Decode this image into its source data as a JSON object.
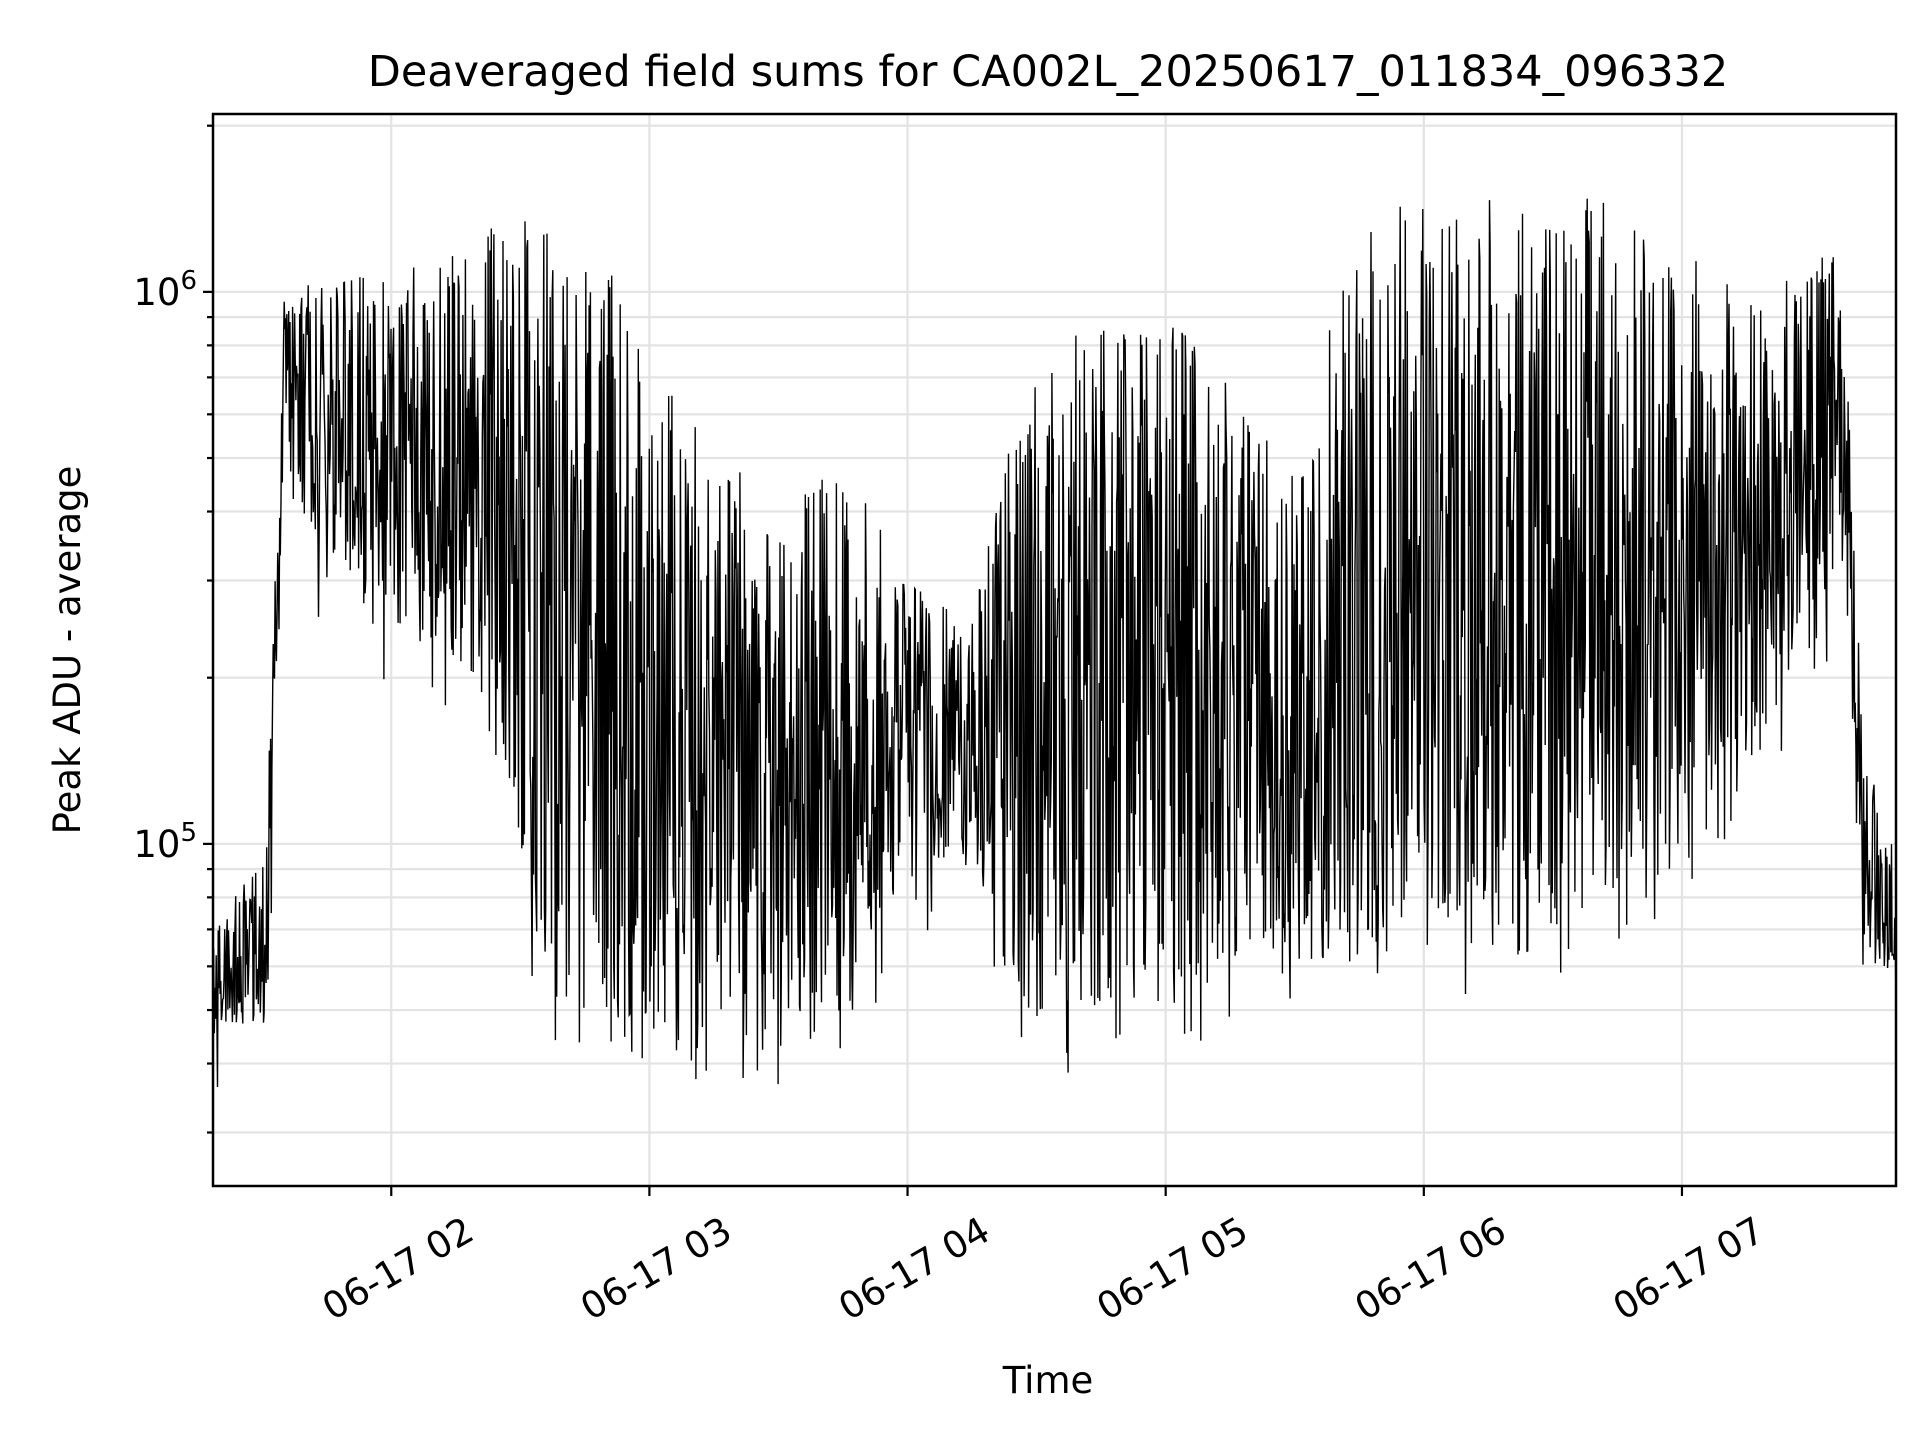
{
  "chart_data": {
    "type": "line",
    "title": "Deaveraged field sums for CA002L_20250617_011834_096332",
    "xlabel": "Time",
    "ylabel": "Peak ADU - average",
    "yscale": "log",
    "xlim": [
      "2025-06-17 01:18:34",
      "2025-06-17 07:49:45"
    ],
    "ylim": [
      24000,
      2100000
    ],
    "x_tick_labels": [
      "06-17 02",
      "06-17 03",
      "06-17 04",
      "06-17 05",
      "06-17 06",
      "06-17 07"
    ],
    "x_ticks": [
      "2025-06-17 02:00",
      "2025-06-17 03:00",
      "2025-06-17 04:00",
      "2025-06-17 05:00",
      "2025-06-17 06:00",
      "2025-06-17 07:00"
    ],
    "y_tick_labels": [
      {
        "base": "10",
        "exp": "5",
        "value": 100000
      },
      {
        "base": "10",
        "exp": "6",
        "value": 1000000
      }
    ],
    "grid": true,
    "series": [
      {
        "color": "#000000",
        "envelope": [
          {
            "t": "2025-06-17 01:18:34",
            "low": 48000,
            "high": 70000
          },
          {
            "t": "2025-06-17 01:30:00",
            "low": 46000,
            "high": 95000
          },
          {
            "t": "2025-06-17 01:32:00",
            "low": 55000,
            "high": 200000
          },
          {
            "t": "2025-06-17 01:35:00",
            "low": 500000,
            "high": 1000000
          },
          {
            "t": "2025-06-17 01:45:00",
            "low": 300000,
            "high": 1050000
          },
          {
            "t": "2025-06-17 02:00:00",
            "low": 250000,
            "high": 1100000
          },
          {
            "t": "2025-06-17 02:20:00",
            "low": 200000,
            "high": 1300000
          },
          {
            "t": "2025-06-17 02:35:00",
            "low": 60000,
            "high": 1400000
          },
          {
            "t": "2025-06-17 02:50:00",
            "low": 50000,
            "high": 1200000
          },
          {
            "t": "2025-06-17 03:10:00",
            "low": 46000,
            "high": 600000
          },
          {
            "t": "2025-06-17 03:30:00",
            "low": 48000,
            "high": 400000
          },
          {
            "t": "2025-06-17 03:45:00",
            "low": 50000,
            "high": 500000
          },
          {
            "t": "2025-06-17 04:00:00",
            "low": 90000,
            "high": 300000
          },
          {
            "t": "2025-06-17 04:15:00",
            "low": 95000,
            "high": 250000
          },
          {
            "t": "2025-06-17 04:25:00",
            "low": 50000,
            "high": 700000
          },
          {
            "t": "2025-06-17 04:45:00",
            "low": 50000,
            "high": 900000
          },
          {
            "t": "2025-06-17 05:00:00",
            "low": 55000,
            "high": 1000000
          },
          {
            "t": "2025-06-17 05:15:00",
            "low": 60000,
            "high": 700000
          },
          {
            "t": "2025-06-17 05:30:00",
            "low": 60000,
            "high": 500000
          },
          {
            "t": "2025-06-17 05:45:00",
            "low": 60000,
            "high": 1400000
          },
          {
            "t": "2025-06-17 06:00:00",
            "low": 80000,
            "high": 1450000
          },
          {
            "t": "2025-06-17 06:20:00",
            "low": 60000,
            "high": 1500000
          },
          {
            "t": "2025-06-17 06:40:00",
            "low": 80000,
            "high": 1500000
          },
          {
            "t": "2025-06-17 07:00:00",
            "low": 100000,
            "high": 1200000
          },
          {
            "t": "2025-06-17 07:20:00",
            "low": 150000,
            "high": 1000000
          },
          {
            "t": "2025-06-17 07:35:00",
            "low": 300000,
            "high": 1200000
          },
          {
            "t": "2025-06-17 07:38:00",
            "low": 300000,
            "high": 900000
          },
          {
            "t": "2025-06-17 07:42:00",
            "low": 60000,
            "high": 150000
          },
          {
            "t": "2025-06-17 07:49:45",
            "low": 60000,
            "high": 95000
          }
        ]
      }
    ]
  }
}
